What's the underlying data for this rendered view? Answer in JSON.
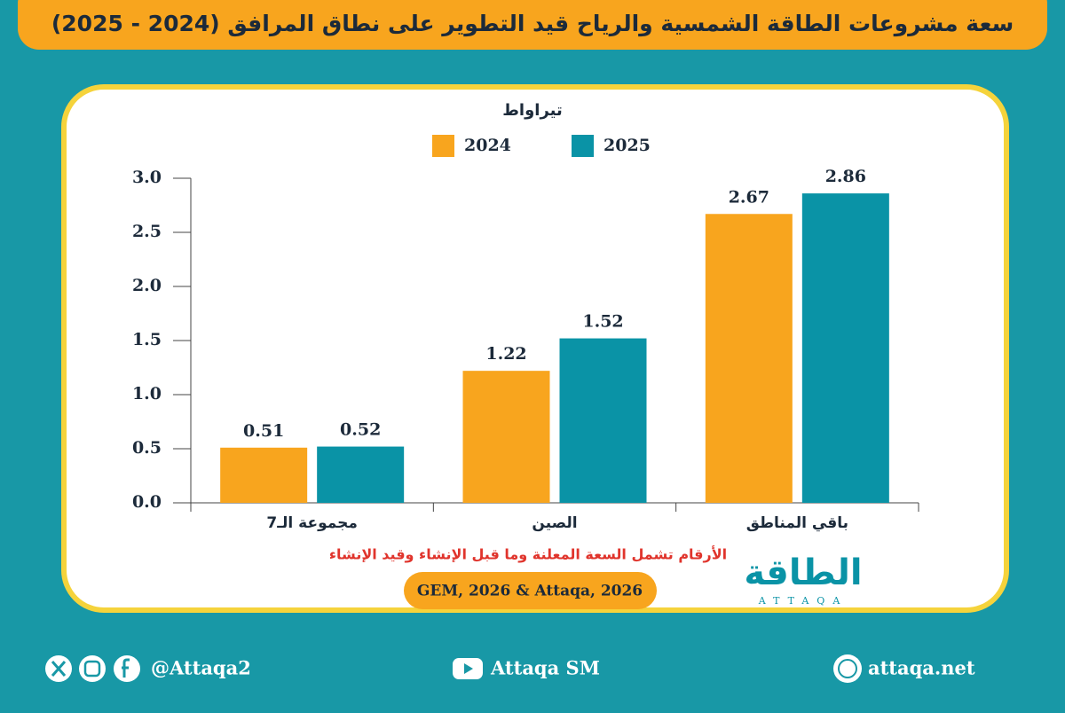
{
  "chart_data": {
    "type": "bar",
    "title": "سعة مشروعات الطاقة الشمسية والرياح قيد التطوير على نطاق المرافق (2024 - 2025)",
    "y_label": "تيراواط",
    "categories": [
      "مجموعة الـ7",
      "الصين",
      "باقي المناطق"
    ],
    "series": [
      {
        "name": "2024",
        "color": "#f8a51e",
        "values": [
          0.51,
          1.22,
          2.67
        ]
      },
      {
        "name": "2025",
        "color": "#0a93a6",
        "values": [
          0.52,
          1.52,
          2.86
        ]
      }
    ],
    "ylim": [
      0,
      3
    ],
    "yticks": [
      {
        "value": 0,
        "label": "0.0"
      },
      0.5,
      {
        "value": 1,
        "label": "1.0"
      },
      1.5,
      {
        "value": 2,
        "label": "2.0"
      },
      2.5,
      {
        "value": 3,
        "label": "3.0"
      }
    ],
    "note": "الأرقام تشمل السعة المعلنة وما قبل الإنشاء وقيد الإنشاء",
    "source": "GEM, 2026 & Attaqa, 2026"
  },
  "logo": {
    "name": "الطاقة",
    "latin": "ATTAQA"
  },
  "footer": {
    "social": "@Attaqa2",
    "youtube": "Attaqa SM",
    "website": "attaqa.net"
  }
}
